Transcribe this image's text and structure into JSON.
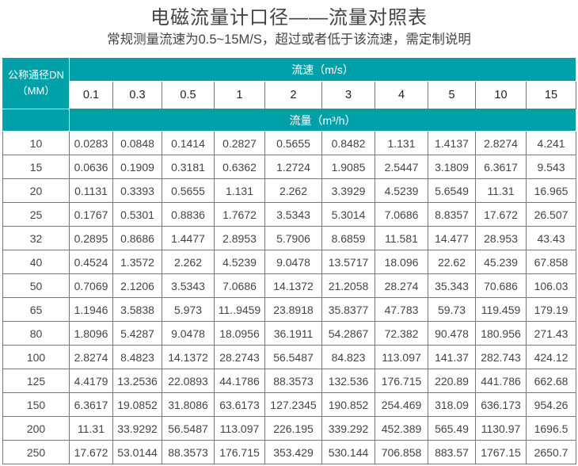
{
  "title": "电磁流量计口径——流量对照表",
  "subtitle": "常规测量流速为0.5~15M/S，超过或者低于该流速，需定制说明",
  "colors": {
    "header_bg": "#00a0a9",
    "header_text": "#ffffff",
    "border": "#777777"
  },
  "table": {
    "dn_header_line1": "公称通径DN",
    "dn_header_line2": "（MM）",
    "speed_header": "流速（m/s）",
    "flow_header": "流量（m³/h）",
    "speeds": [
      "0.1",
      "0.3",
      "0.5",
      "1",
      "2",
      "3",
      "4",
      "5",
      "10",
      "15"
    ],
    "rows": [
      {
        "dn": "10",
        "values": [
          "0.0283",
          "0.0848",
          "0.1414",
          "0.2827",
          "0.5655",
          "0.8482",
          "1.131",
          "1.4137",
          "2.8274",
          "4.241"
        ]
      },
      {
        "dn": "15",
        "values": [
          "0.0636",
          "0.1909",
          "0.3181",
          "0.6362",
          "1.2724",
          "1.9085",
          "2.5447",
          "3.1809",
          "6.3617",
          "9.543"
        ]
      },
      {
        "dn": "20",
        "values": [
          "0.1131",
          "0.3393",
          "0.5655",
          "1.131",
          "2.262",
          "3.3929",
          "4.5239",
          "5.6549",
          "11.31",
          "16.965"
        ]
      },
      {
        "dn": "25",
        "values": [
          "0.1767",
          "0.5301",
          "0.8836",
          "1.7672",
          "3.5343",
          "5.3014",
          "7.0686",
          "8.8357",
          "17.672",
          "26.507"
        ]
      },
      {
        "dn": "32",
        "values": [
          "0.2895",
          "0.8686",
          "1.4477",
          "2.8953",
          "5.7906",
          "8.6859",
          "11.581",
          "14.477",
          "28.953",
          "43.43"
        ]
      },
      {
        "dn": "40",
        "values": [
          "0.4524",
          "1.3572",
          "2.262",
          "4.5239",
          "9.0478",
          "13.5717",
          "18.096",
          "22.62",
          "45.239",
          "67.858"
        ]
      },
      {
        "dn": "50",
        "values": [
          "0.7069",
          "2.1206",
          "3.5343",
          "7.0686",
          "14.1372",
          "21.2058",
          "28.274",
          "35.343",
          "70.686",
          "106.03"
        ]
      },
      {
        "dn": "65",
        "values": [
          "1.1946",
          "3.5838",
          "5.973",
          "11..9459",
          "23.8918",
          "35.8377",
          "47.783",
          "59.73",
          "119.459",
          "179.19"
        ]
      },
      {
        "dn": "80",
        "values": [
          "1.8096",
          "5.4287",
          "9.0478",
          "18.0956",
          "36.1911",
          "54.2867",
          "72.382",
          "90.478",
          "180.956",
          "271.43"
        ]
      },
      {
        "dn": "100",
        "values": [
          "2.8274",
          "8.4823",
          "14.1372",
          "28.2743",
          "56.5487",
          "84.823",
          "113.097",
          "141.37",
          "282.743",
          "424.12"
        ]
      },
      {
        "dn": "125",
        "values": [
          "4.4179",
          "13.2536",
          "22.0893",
          "44.1786",
          "88.3573",
          "132.536",
          "176.715",
          "220.89",
          "441.786",
          "662.68"
        ]
      },
      {
        "dn": "150",
        "values": [
          "6.3617",
          "19.0852",
          "31.8086",
          "63.6173",
          "127.2345",
          "190.852",
          "254.469",
          "318.09",
          "636.173",
          "954.26"
        ]
      },
      {
        "dn": "200",
        "values": [
          "11.31",
          "33.9292",
          "56.5487",
          "113.097",
          "226.195",
          "339.292",
          "452.389",
          "565.49",
          "1130.97",
          "1696.5"
        ]
      },
      {
        "dn": "250",
        "values": [
          "17.672",
          "53.0144",
          "88.3573",
          "176.715",
          "353.429",
          "530.144",
          "706.858",
          "883.57",
          "1767.15",
          "2650.7"
        ]
      }
    ]
  }
}
